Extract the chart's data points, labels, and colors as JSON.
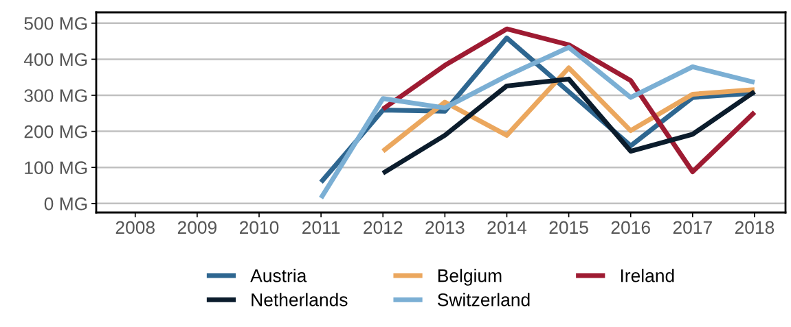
{
  "chart_data": {
    "type": "line",
    "categories": [
      "2008",
      "2009",
      "2010",
      "2011",
      "2012",
      "2013",
      "2014",
      "2015",
      "2016",
      "2017",
      "2018"
    ],
    "ylim": [
      -25,
      530
    ],
    "yticks": [
      {
        "value": 0,
        "label": "0 MG"
      },
      {
        "value": 100,
        "label": "100 MG"
      },
      {
        "value": 200,
        "label": "200 MG"
      },
      {
        "value": 300,
        "label": "300 MG"
      },
      {
        "value": 400,
        "label": "400 MG"
      },
      {
        "value": 500,
        "label": "500 MG"
      }
    ],
    "grid": "y",
    "legend": "bottom",
    "marker": "none",
    "line_style": "solid",
    "series": [
      {
        "name": "Austria",
        "color": "#2e6690",
        "values": [
          null,
          null,
          null,
          59,
          259,
          256,
          459,
          310,
          160,
          294,
          306
        ]
      },
      {
        "name": "Belgium",
        "color": "#eba75e",
        "values": [
          null,
          null,
          null,
          null,
          145,
          281,
          189,
          376,
          202,
          303,
          316
        ]
      },
      {
        "name": "Ireland",
        "color": "#9e1b32",
        "values": [
          null,
          null,
          null,
          null,
          262,
          383,
          484,
          440,
          341,
          88,
          253
        ]
      },
      {
        "name": "Netherlands",
        "color": "#0b1c2c",
        "values": [
          null,
          null,
          null,
          null,
          84,
          189,
          326,
          345,
          145,
          192,
          310
        ]
      },
      {
        "name": "Switzerland",
        "color": "#7bafd4",
        "values": [
          null,
          null,
          null,
          15,
          291,
          265,
          354,
          433,
          294,
          379,
          336
        ]
      }
    ]
  }
}
